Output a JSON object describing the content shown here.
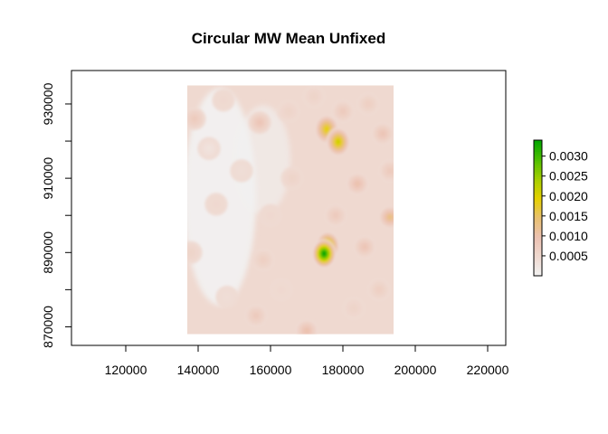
{
  "chart_data": {
    "type": "heatmap",
    "title": "Circular MW Mean Unfixed",
    "xlabel": "",
    "ylabel": "",
    "xlim": [
      105000,
      225000
    ],
    "ylim": [
      865000,
      939000
    ],
    "x_ticks": [
      120000,
      140000,
      160000,
      180000,
      200000,
      220000
    ],
    "x_tick_labels": [
      "120000",
      "140000",
      "160000",
      "180000",
      "200000",
      "220000"
    ],
    "y_ticks": [
      870000,
      890000,
      910000,
      930000
    ],
    "y_tick_labels": [
      "870000",
      "890000",
      "910000",
      "930000"
    ],
    "raster_extent": {
      "xmin": 137000,
      "xmax": 194000,
      "ymin": 868000,
      "ymax": 935000
    },
    "legend": {
      "placement": "right",
      "range": [
        0,
        0.0034
      ],
      "ticks": [
        0.0005,
        0.001,
        0.0015,
        0.002,
        0.0025,
        0.003
      ],
      "tick_labels": [
        "0.0005",
        "0.0010",
        "0.0015",
        "0.0020",
        "0.0025",
        "0.0030"
      ],
      "colors": [
        "#f2f2f2",
        "#efd9d0",
        "#ecc2b2",
        "#e9c070",
        "#e6d100",
        "#a6cf00",
        "#4fbf00",
        "#00a600"
      ]
    },
    "hotspots": [
      {
        "x": 174800,
        "y": 889700,
        "value": 0.0034
      },
      {
        "x": 175800,
        "y": 891800,
        "value": 0.0024
      },
      {
        "x": 175500,
        "y": 923200,
        "value": 0.0019
      },
      {
        "x": 178700,
        "y": 919800,
        "value": 0.0021
      },
      {
        "x": 193000,
        "y": 899500,
        "value": 0.0013
      },
      {
        "x": 184000,
        "y": 908500,
        "value": 0.001
      },
      {
        "x": 157000,
        "y": 925000,
        "value": 0.0009
      },
      {
        "x": 139000,
        "y": 926000,
        "value": 0.0008
      },
      {
        "x": 191000,
        "y": 922000,
        "value": 0.0009
      },
      {
        "x": 186000,
        "y": 891500,
        "value": 0.0009
      },
      {
        "x": 170000,
        "y": 869000,
        "value": 0.001
      },
      {
        "x": 156000,
        "y": 873000,
        "value": 0.0008
      },
      {
        "x": 158000,
        "y": 888000,
        "value": 0.0007
      },
      {
        "x": 138000,
        "y": 890000,
        "value": 0.0006
      },
      {
        "x": 165000,
        "y": 928000,
        "value": 0.0006
      },
      {
        "x": 147000,
        "y": 931000,
        "value": 0.0005
      },
      {
        "x": 183000,
        "y": 875000,
        "value": 0.0006
      },
      {
        "x": 187000,
        "y": 930000,
        "value": 0.0007
      },
      {
        "x": 145000,
        "y": 903000,
        "value": 0.0005
      },
      {
        "x": 166000,
        "y": 910000,
        "value": 0.0006
      },
      {
        "x": 152000,
        "y": 912000,
        "value": 0.0004
      },
      {
        "x": 190000,
        "y": 880000,
        "value": 0.0007
      },
      {
        "x": 163000,
        "y": 880000,
        "value": 0.0005
      },
      {
        "x": 178000,
        "y": 900000,
        "value": 0.0008
      },
      {
        "x": 160000,
        "y": 900000,
        "value": 0.0005
      },
      {
        "x": 148000,
        "y": 878000,
        "value": 0.0004
      },
      {
        "x": 193000,
        "y": 912000,
        "value": 0.0008
      },
      {
        "x": 172000,
        "y": 932000,
        "value": 0.0006
      },
      {
        "x": 143000,
        "y": 918000,
        "value": 0.0003
      },
      {
        "x": 180000,
        "y": 928000,
        "value": 0.0008
      }
    ]
  }
}
